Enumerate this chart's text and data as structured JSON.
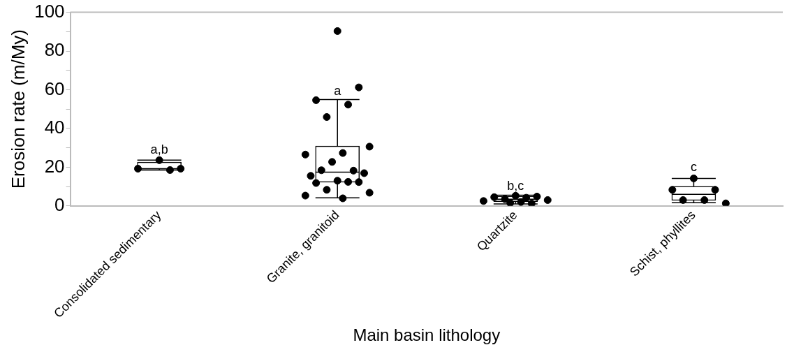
{
  "chart_data": {
    "type": "box",
    "xlabel": "Main basin lithology",
    "ylabel": "Erosion rate (m/My)",
    "categories": [
      "Consolidated sedimentary",
      "Granite, granitoid",
      "Quartzite",
      "Schist, phyllites"
    ],
    "ylim": [
      0,
      100
    ],
    "yticks": [
      0,
      {
        "value": 10,
        "label": null
      },
      20,
      {
        "value": 30,
        "label": null
      },
      40,
      {
        "value": 50,
        "label": null
      },
      60,
      {
        "value": 70,
        "label": null
      },
      80,
      {
        "value": 90,
        "label": null
      },
      100
    ],
    "grid": false,
    "legend": false,
    "series": [
      {
        "type": "box",
        "color": "#000000",
        "boxes": [
          {
            "low": 18.5,
            "q1": 19,
            "median": 19.2,
            "q3": 22.6,
            "high": 23.6
          },
          {
            "low": 4.2,
            "q1": 12.2,
            "median": 17.4,
            "q3": 30.9,
            "high": 54.9
          },
          {
            "low": 1.0,
            "q1": 2.2,
            "median": 3.4,
            "q3": 5.0,
            "high": 5.5
          },
          {
            "low": 1.6,
            "q1": 2.8,
            "median": 6.0,
            "q3": 10.1,
            "high": 14.2
          }
        ]
      },
      {
        "type": "scatter",
        "color": "#000000",
        "marker": "circle",
        "x": [
          "Consolidated sedimentary",
          "Consolidated sedimentary",
          "Consolidated sedimentary",
          "Consolidated sedimentary",
          "Granite, granitoid",
          "Granite, granitoid",
          "Granite, granitoid",
          "Granite, granitoid",
          "Granite, granitoid",
          "Granite, granitoid",
          "Granite, granitoid",
          "Granite, granitoid",
          "Granite, granitoid",
          "Granite, granitoid",
          "Granite, granitoid",
          "Granite, granitoid",
          "Granite, granitoid",
          "Granite, granitoid",
          "Granite, granitoid",
          "Granite, granitoid",
          "Granite, granitoid",
          "Granite, granitoid",
          "Granite, granitoid",
          "Granite, granitoid",
          "Granite, granitoid",
          "Quartzite",
          "Quartzite",
          "Quartzite",
          "Quartzite",
          "Quartzite",
          "Quartzite",
          "Quartzite",
          "Quartzite",
          "Quartzite",
          "Quartzite",
          "Schist, phyllites",
          "Schist, phyllites",
          "Schist, phyllites",
          "Schist, phyllites",
          "Schist, phyllites",
          "Schist, phyllites"
        ],
        "values": [
          23.6,
          19.2,
          19.2,
          18.5,
          90.3,
          61.2,
          54.6,
          52.3,
          45.9,
          30.6,
          26.5,
          27.3,
          22.7,
          18.2,
          18.4,
          16.9,
          15.5,
          13.0,
          12.3,
          11.8,
          12.4,
          8.3,
          6.8,
          5.3,
          3.9,
          5.2,
          4.8,
          4.5,
          4.2,
          3.5,
          3.0,
          2.5,
          2.0,
          1.5,
          1.2,
          14.2,
          8.3,
          8.3,
          3.0,
          3.0,
          1.3
        ]
      }
    ],
    "annotations": [
      {
        "text": "a,b",
        "x": "Consolidated sedimentary",
        "y": 25.5
      },
      "a",
      "b,c",
      {
        "text": "c",
        "x": "Schist, phyllites",
        "y": 16.5
      }
    ]
  }
}
